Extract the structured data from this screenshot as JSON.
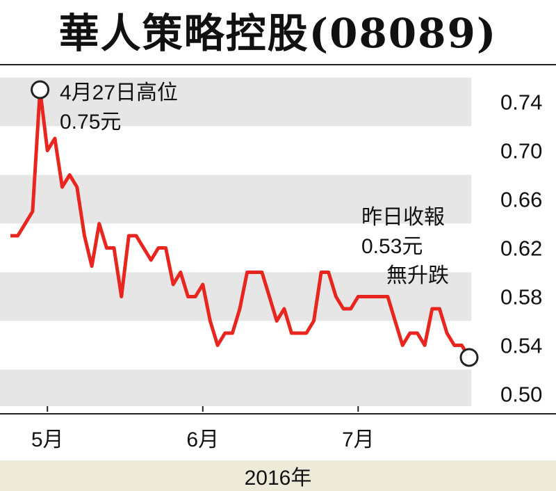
{
  "chart_data": {
    "type": "line",
    "title": "華人策略控股(08089)",
    "xlabel": "2016年",
    "ylabel": "",
    "ylim": [
      0.49,
      0.77
    ],
    "y_ticks": [
      "0.74",
      "0.70",
      "0.66",
      "0.62",
      "0.58",
      "0.54",
      "0.50"
    ],
    "y_tick_values": [
      0.74,
      0.7,
      0.66,
      0.62,
      0.58,
      0.54,
      0.5
    ],
    "x_ticks": [
      {
        "label": "5月",
        "index": 5
      },
      {
        "label": "6月",
        "index": 26
      },
      {
        "label": "7月",
        "index": 47
      }
    ],
    "grid": "alternating horizontal bands",
    "line_color": "#e8261f",
    "values": [
      0.63,
      0.63,
      0.64,
      0.65,
      0.75,
      0.7,
      0.71,
      0.67,
      0.68,
      0.67,
      0.63,
      0.605,
      0.64,
      0.62,
      0.62,
      0.58,
      0.63,
      0.63,
      0.62,
      0.61,
      0.62,
      0.62,
      0.59,
      0.6,
      0.58,
      0.58,
      0.59,
      0.56,
      0.54,
      0.55,
      0.55,
      0.57,
      0.6,
      0.6,
      0.6,
      0.58,
      0.56,
      0.57,
      0.55,
      0.55,
      0.55,
      0.56,
      0.6,
      0.6,
      0.58,
      0.57,
      0.57,
      0.58,
      0.58,
      0.58,
      0.58,
      0.58,
      0.56,
      0.54,
      0.55,
      0.55,
      0.54,
      0.57,
      0.57,
      0.55,
      0.54,
      0.54,
      0.53
    ],
    "annotations": {
      "high": {
        "date": "4月27日高位",
        "value_text": "0.75元",
        "value": 0.75,
        "index": 4
      },
      "close": {
        "line1": "昨日收報",
        "value_text": "0.53元",
        "line3": "無升跌",
        "value": 0.53,
        "index": 62
      }
    }
  }
}
